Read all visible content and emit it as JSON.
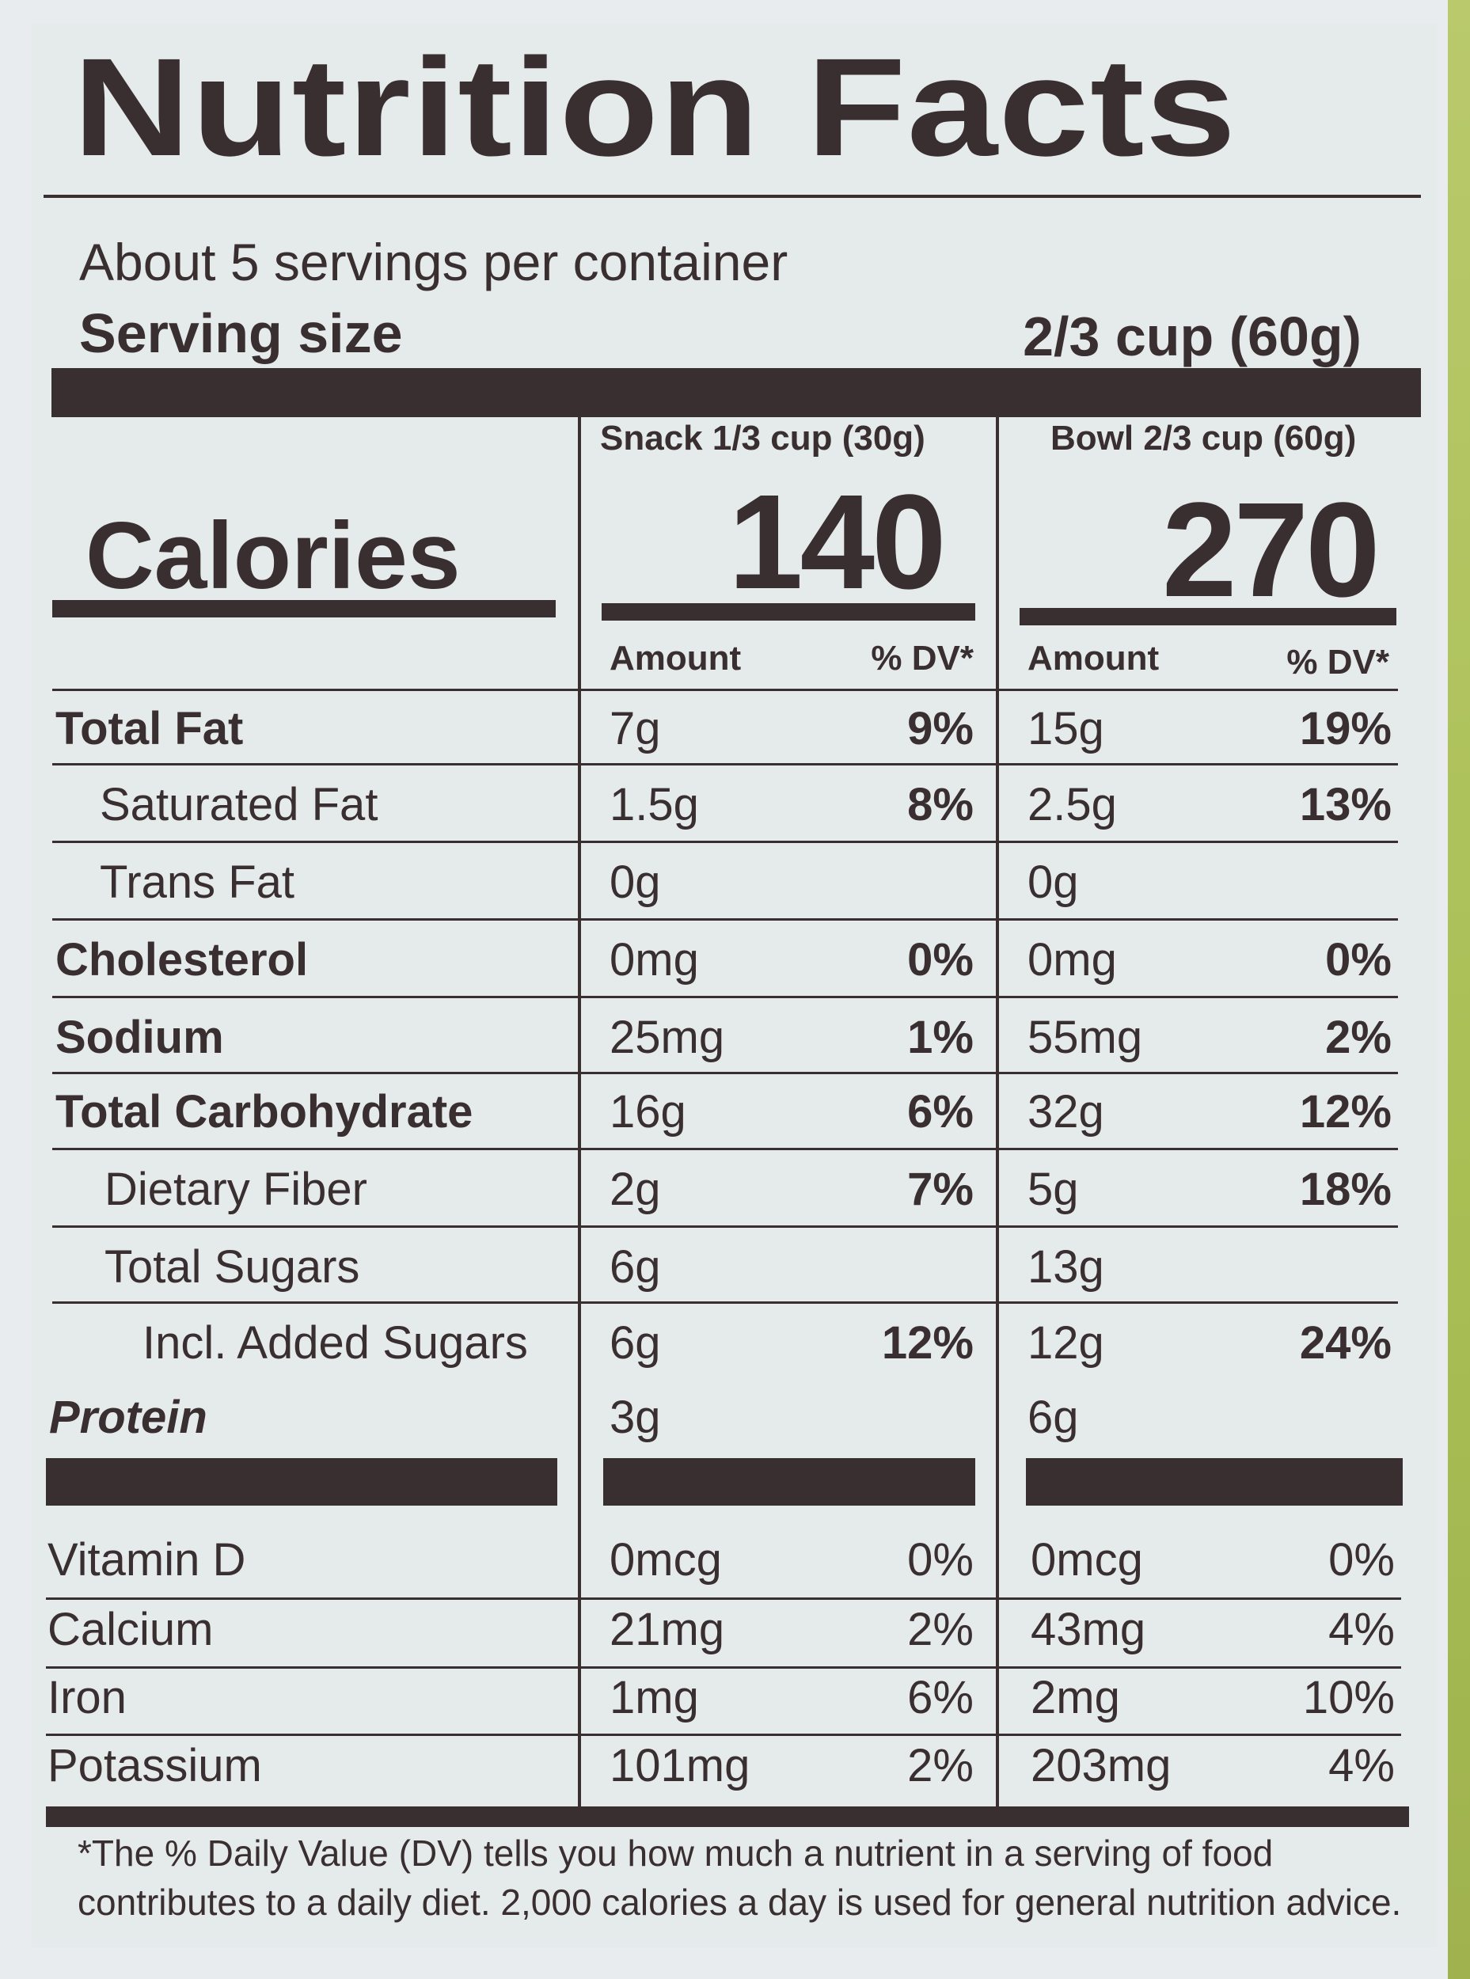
{
  "title": "Nutrition Facts",
  "servings_per_container": "About 5 servings per container",
  "serving_size_label": "Serving size",
  "serving_size_value": "2/3 cup (60g)",
  "columns": [
    {
      "header": "Snack 1/3 cup (30g)",
      "calories": "140",
      "amount_label": "Amount",
      "dv_label": "% DV*"
    },
    {
      "header": "Bowl 2/3 cup (60g)",
      "calories": "270",
      "amount_label": "Amount",
      "dv_label": "% DV*"
    }
  ],
  "calories_label": "Calories",
  "nutrients": [
    {
      "name": "Total Fat",
      "snack_amount": "7g",
      "snack_dv": "9%",
      "bowl_amount": "15g",
      "bowl_dv": "19%"
    },
    {
      "name": "Saturated Fat",
      "snack_amount": "1.5g",
      "snack_dv": "8%",
      "bowl_amount": "2.5g",
      "bowl_dv": "13%"
    },
    {
      "name": "Trans Fat",
      "snack_amount": "0g",
      "snack_dv": "",
      "bowl_amount": "0g",
      "bowl_dv": ""
    },
    {
      "name": "Cholesterol",
      "snack_amount": "0mg",
      "snack_dv": "0%",
      "bowl_amount": "0mg",
      "bowl_dv": "0%"
    },
    {
      "name": "Sodium",
      "snack_amount": "25mg",
      "snack_dv": "1%",
      "bowl_amount": "55mg",
      "bowl_dv": "2%"
    },
    {
      "name": "Total Carbohydrate",
      "snack_amount": "16g",
      "snack_dv": "6%",
      "bowl_amount": "32g",
      "bowl_dv": "12%"
    },
    {
      "name": "Dietary Fiber",
      "snack_amount": "2g",
      "snack_dv": "7%",
      "bowl_amount": "5g",
      "bowl_dv": "18%"
    },
    {
      "name": "Total Sugars",
      "snack_amount": "6g",
      "snack_dv": "",
      "bowl_amount": "13g",
      "bowl_dv": ""
    },
    {
      "name": "Incl. Added Sugars",
      "snack_amount": "6g",
      "snack_dv": "12%",
      "bowl_amount": "12g",
      "bowl_dv": "24%"
    },
    {
      "name": "Protein",
      "snack_amount": "3g",
      "snack_dv": "",
      "bowl_amount": "6g",
      "bowl_dv": ""
    }
  ],
  "vitamins": [
    {
      "name": "Vitamin D",
      "snack_amount": "0mcg",
      "snack_dv": "0%",
      "bowl_amount": "0mcg",
      "bowl_dv": "0%"
    },
    {
      "name": "Calcium",
      "snack_amount": "21mg",
      "snack_dv": "2%",
      "bowl_amount": "43mg",
      "bowl_dv": "4%"
    },
    {
      "name": "Iron",
      "snack_amount": "1mg",
      "snack_dv": "6%",
      "bowl_amount": "2mg",
      "bowl_dv": "10%"
    },
    {
      "name": "Potassium",
      "snack_amount": "101mg",
      "snack_dv": "2%",
      "bowl_amount": "203mg",
      "bowl_dv": "4%"
    }
  ],
  "footnote_line1": "*The % Daily Value (DV) tells you how much a nutrient in a serving of food",
  "footnote_line2": "contributes to a daily diet. 2,000 calories a day is used for general nutrition advice.",
  "colors": {
    "ink": "#3a2f30",
    "label_bg": "#e5eaea",
    "package_green": "#a9bf54"
  }
}
